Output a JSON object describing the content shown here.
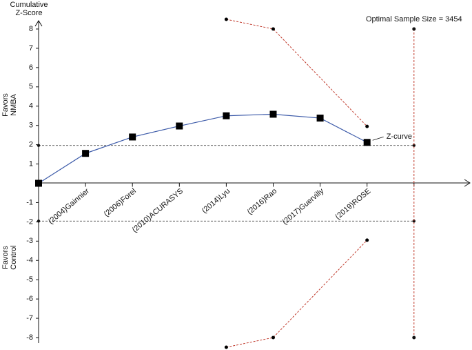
{
  "chart_data": {
    "type": "line",
    "y_title": [
      "Cumulative",
      "Z-Score"
    ],
    "favors_top": [
      "Favors",
      "NMBA"
    ],
    "favors_bottom": [
      "Favors",
      "Control"
    ],
    "categories": [
      null,
      "(2004)Gainnier",
      "(2006)Forel",
      "(2010)ACURASYS",
      "(2014)Lyu",
      "(2016)Rao",
      "(2017)Guervilly",
      "(2019)ROSE",
      null
    ],
    "series": [
      {
        "name": "Z-curve",
        "color": "#3d5ba9",
        "marker": "square",
        "x": [
          0,
          1,
          2,
          3,
          4,
          5,
          6,
          7
        ],
        "values": [
          0,
          1.55,
          2.4,
          2.97,
          3.5,
          3.58,
          3.38,
          2.12
        ]
      },
      {
        "color": "#c0392b",
        "marker": "circle",
        "dashed": true,
        "x": [
          4,
          5,
          7
        ],
        "values": [
          8.5,
          8,
          2.95
        ]
      },
      {
        "color": "#c0392b",
        "marker": "circle",
        "dashed": true,
        "x": [
          4,
          5,
          7
        ],
        "values": [
          -8.5,
          -8,
          -2.95
        ]
      }
    ],
    "conventional_boundaries": [
      1.96,
      -1.96
    ],
    "optimal_sample_size": {
      "label": "Optimal Sample Size = 3454",
      "x": 8,
      "values": [
        8,
        -8
      ],
      "color": "#c0392b"
    },
    "ylim": [
      -8,
      8
    ],
    "yticks": [
      -8,
      -7,
      -6,
      -5,
      -4,
      -3,
      -2,
      -1,
      1,
      2,
      3,
      4,
      5,
      6,
      7,
      8
    ]
  }
}
